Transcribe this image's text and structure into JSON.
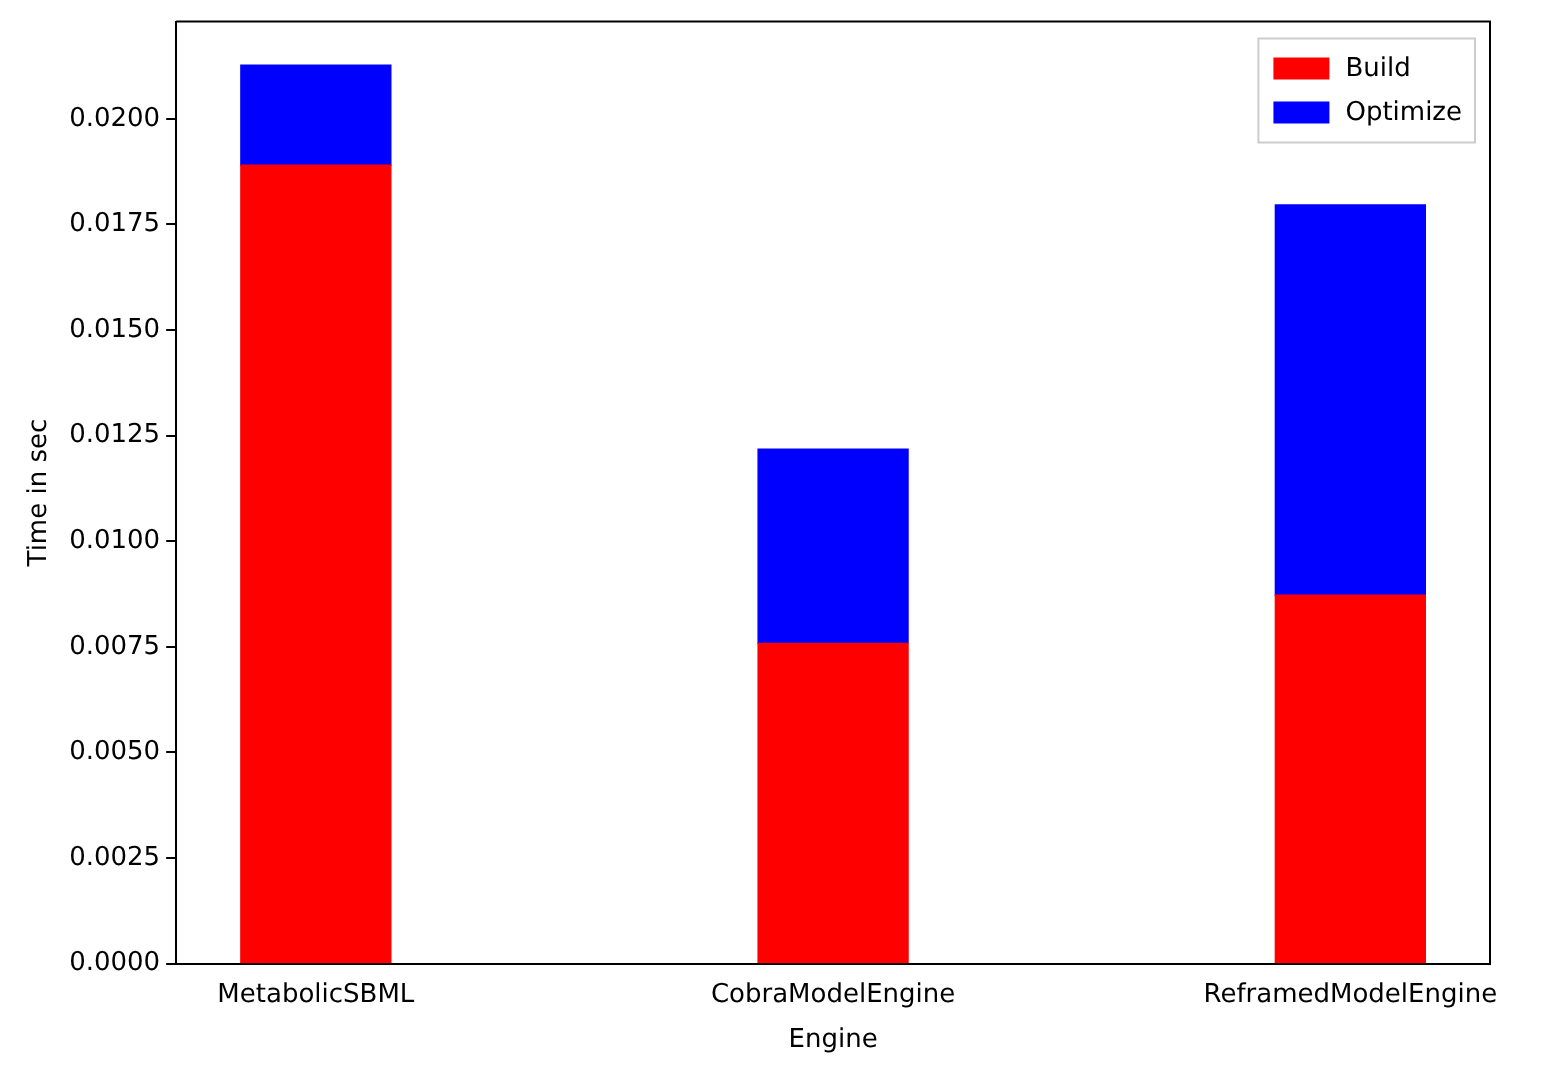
{
  "chart_data": {
    "type": "bar",
    "stacked": true,
    "xlabel": "Engine",
    "ylabel": "Time in sec",
    "categories": [
      "MetabolicSBML",
      "CobraModelEngine",
      "ReframedModelEngine"
    ],
    "series": [
      {
        "name": "Build",
        "color": "#ff0000",
        "values": [
          0.0189,
          0.00758,
          0.00872
        ]
      },
      {
        "name": "Optimize",
        "color": "#0000ff",
        "values": [
          0.00237,
          0.0046,
          0.00924
        ]
      }
    ],
    "ylim": [
      0,
      0.0223
    ],
    "yticks": [
      {
        "value": 0,
        "label": "0.0000"
      },
      {
        "value": 0.0025,
        "label": "0.0025"
      },
      {
        "value": 0.005,
        "label": "0.0050"
      },
      {
        "value": 0.0075,
        "label": "0.0075"
      },
      {
        "value": 0.01,
        "label": "0.0100"
      },
      {
        "value": 0.0125,
        "label": "0.0125"
      },
      {
        "value": 0.015,
        "label": "0.0150"
      },
      {
        "value": 0.0175,
        "label": "0.0175"
      },
      {
        "value": 0.02,
        "label": "0.0200"
      }
    ],
    "grid": false,
    "legend": "top right"
  }
}
